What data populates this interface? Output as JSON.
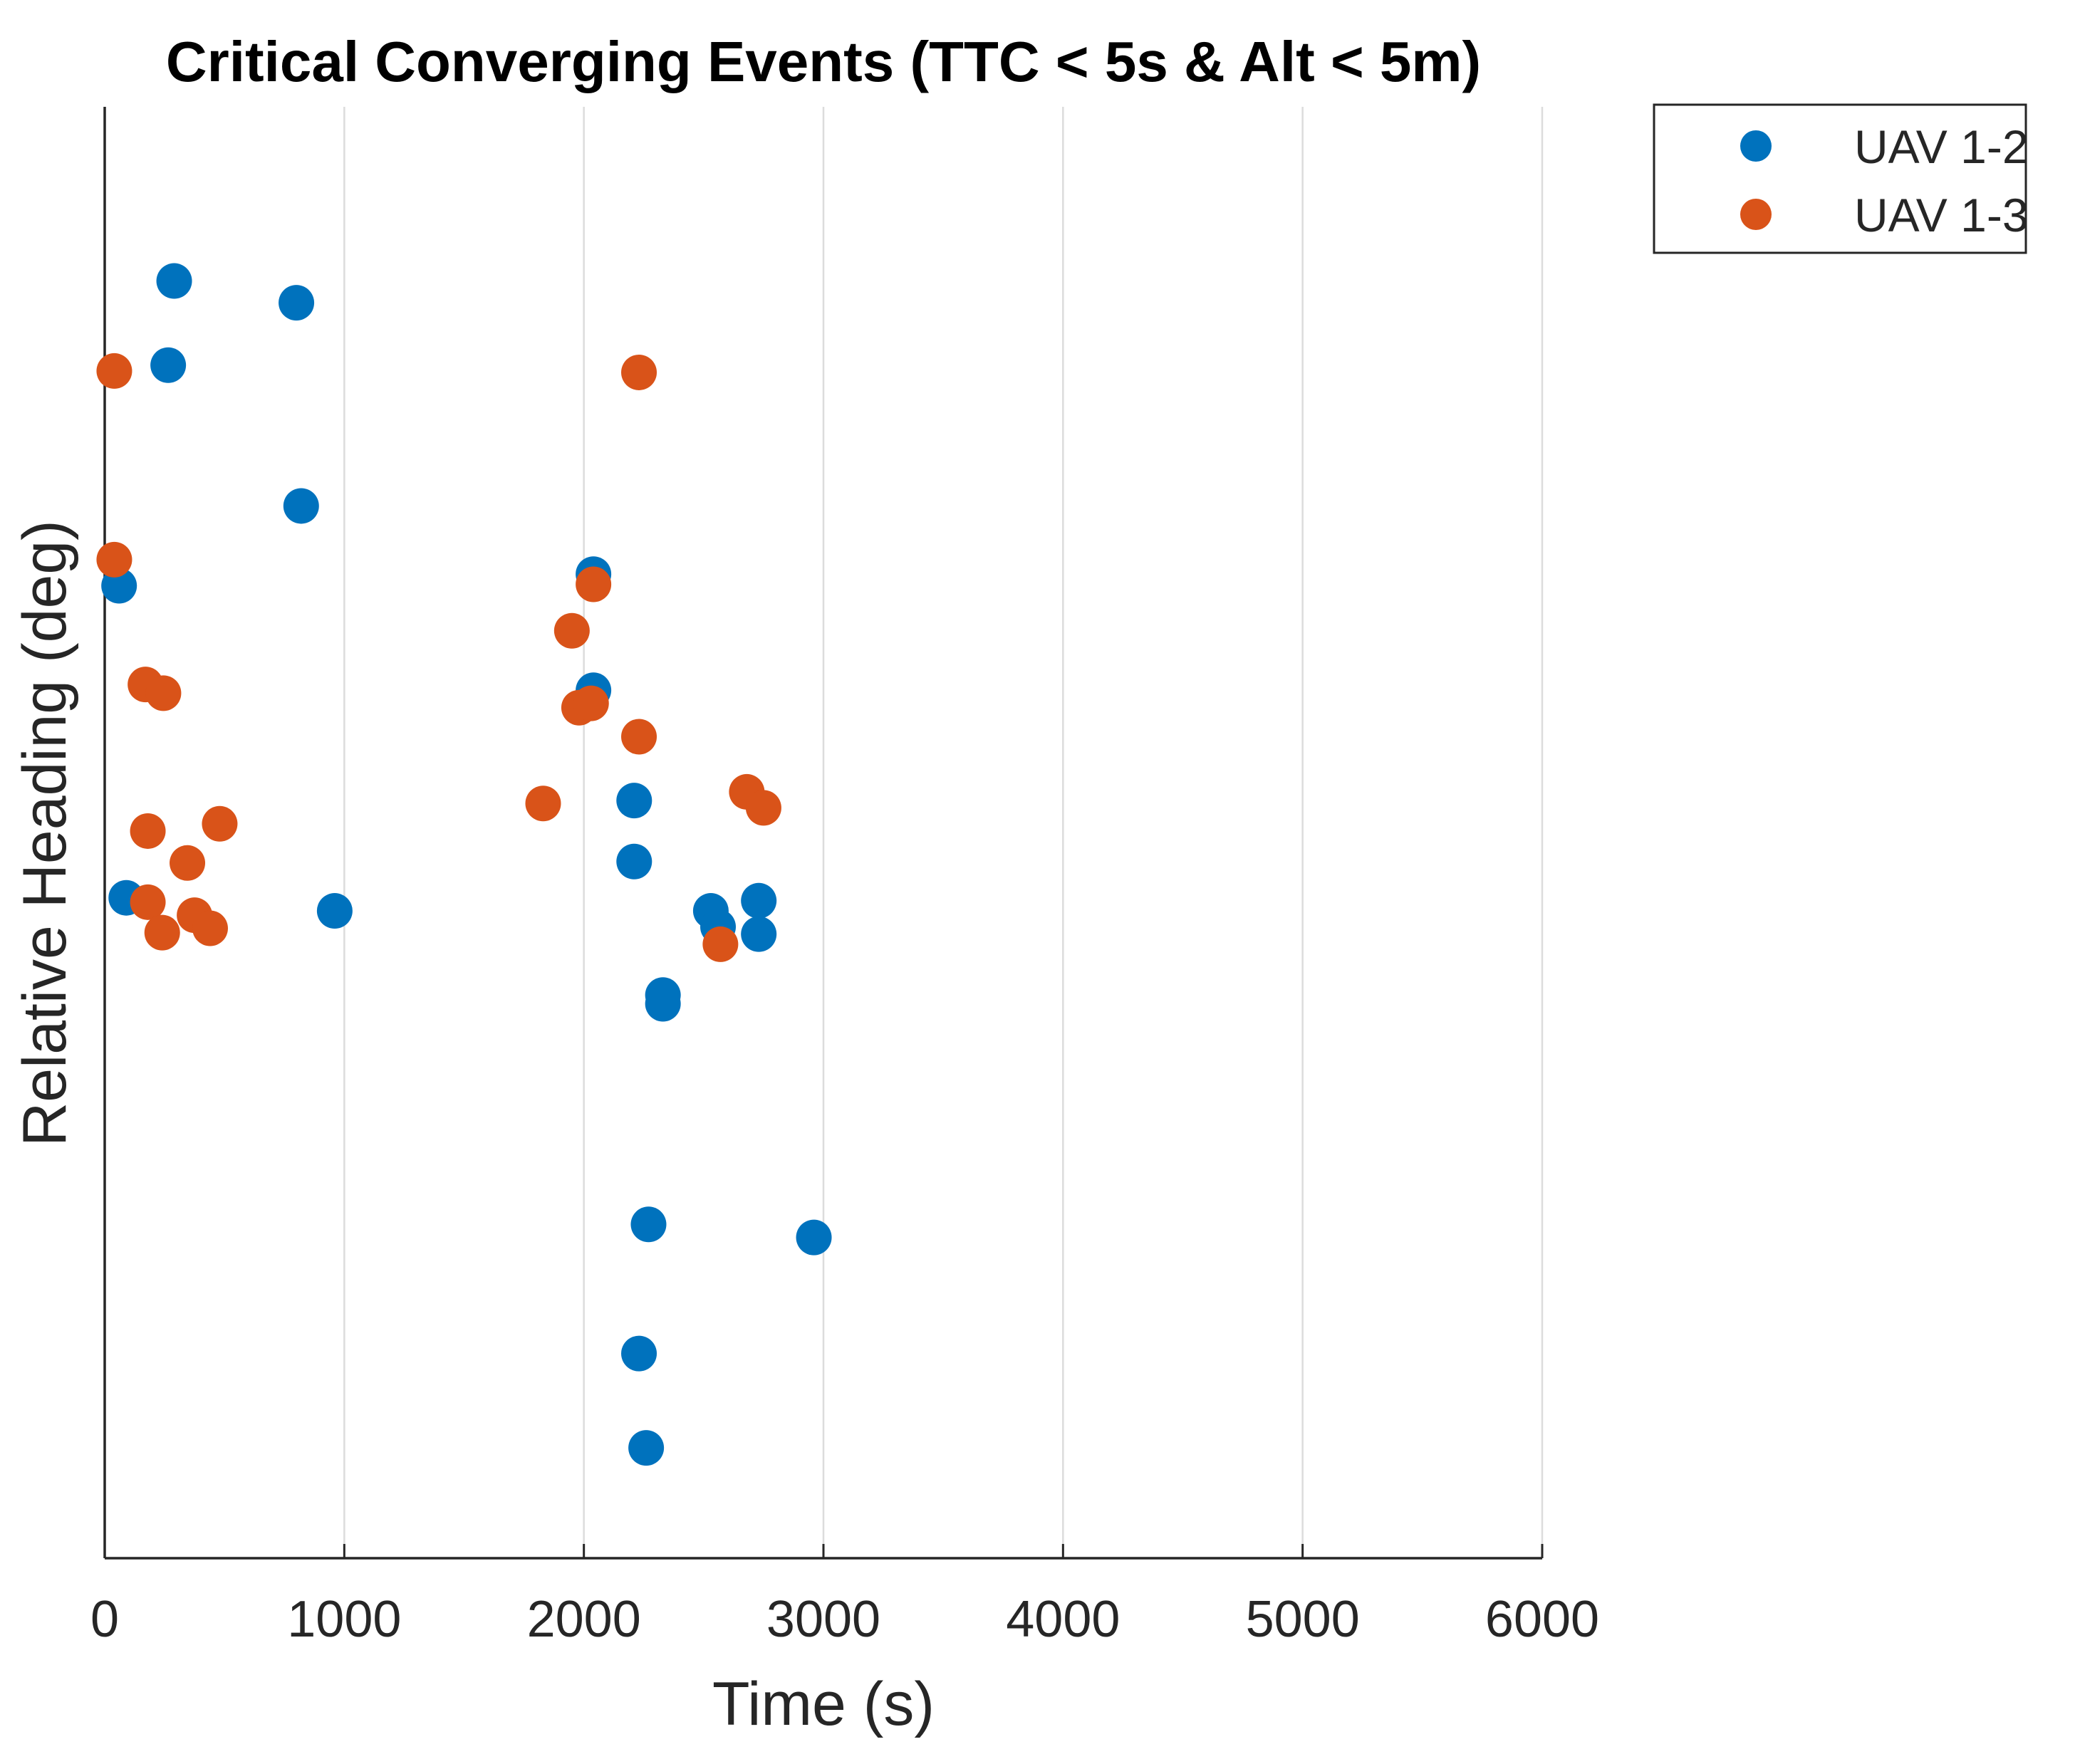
{
  "chart_data": {
    "type": "scatter",
    "title": "Critical Converging Events (TTC < 5s & Alt < 5m)",
    "xlabel": "Time (s)",
    "ylabel": "Relative Heading (deg)",
    "xlim": [
      0,
      6000
    ],
    "ylim": [
      0,
      100
    ],
    "xticks": [
      0,
      1000,
      2000,
      3000,
      4000,
      5000,
      6000
    ],
    "xtick_labels": [
      "0",
      "1000",
      "2000",
      "3000",
      "4000",
      "5000",
      "6000"
    ],
    "grid": "x",
    "legend_position": "outside top-right",
    "series": [
      {
        "name": "UAV 1-2",
        "color": "#0072BD",
        "x": [
          290,
          800,
          265,
          820,
          60,
          2040,
          2040,
          2210,
          2210,
          90,
          960,
          2530,
          2560,
          2730,
          2730,
          2330,
          2330,
          2270,
          2960,
          2230,
          2260
        ],
        "y": [
          88.0,
          86.5,
          82.2,
          72.5,
          67.0,
          67.8,
          59.8,
          52.2,
          48.0,
          45.5,
          44.6,
          44.6,
          43.5,
          45.3,
          43.0,
          38.8,
          38.2,
          23.0,
          22.1,
          14.1,
          7.6
        ]
      },
      {
        "name": "UAV 1-3",
        "color": "#D95319",
        "x": [
          40,
          2230,
          40,
          2040,
          1950,
          170,
          245,
          1980,
          2030,
          2230,
          2680,
          2750,
          1830,
          480,
          180,
          345,
          180,
          375,
          240,
          440,
          2570
        ],
        "y": [
          81.8,
          81.7,
          68.8,
          67.1,
          63.9,
          60.2,
          59.6,
          58.6,
          58.9,
          56.6,
          52.8,
          51.7,
          52.0,
          50.6,
          50.1,
          47.9,
          45.2,
          44.3,
          43.1,
          43.4,
          42.3
        ]
      }
    ]
  }
}
